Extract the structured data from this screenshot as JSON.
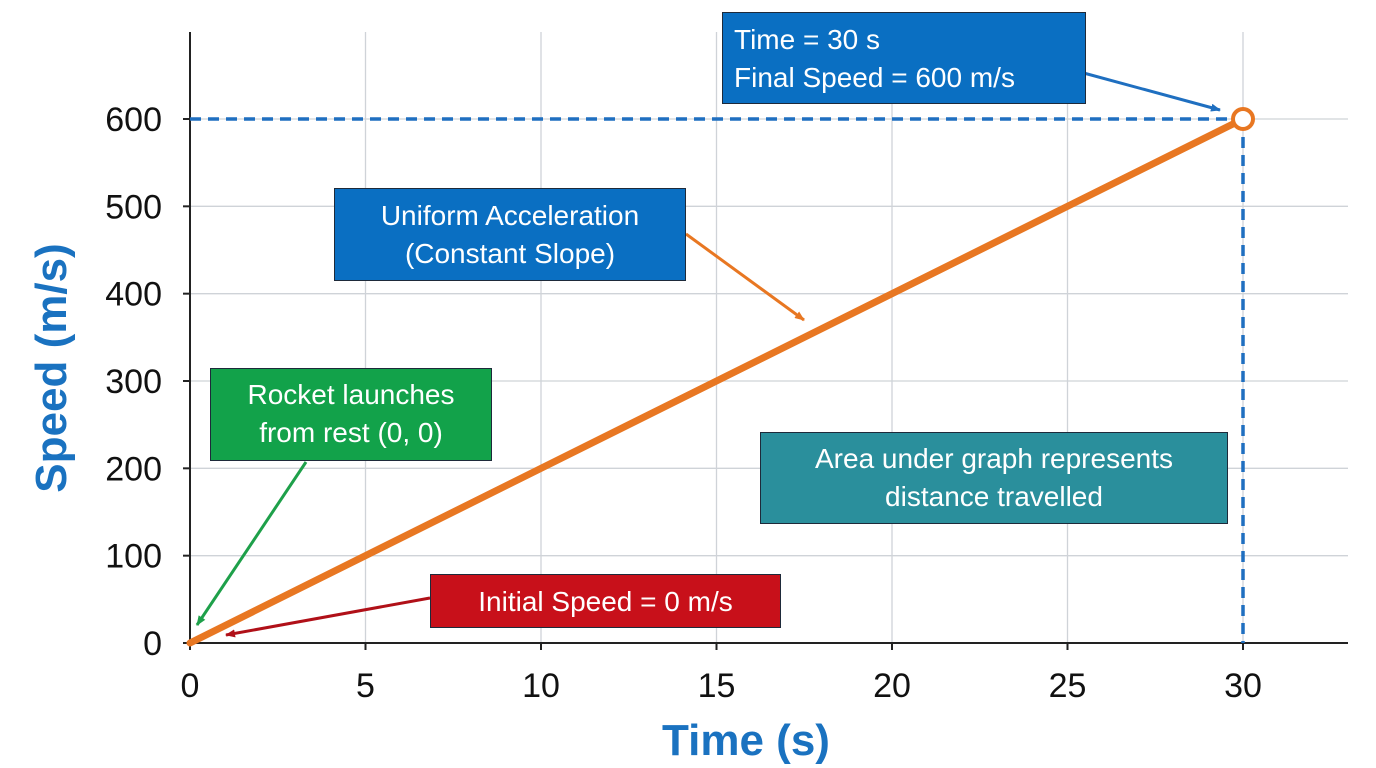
{
  "chart_data": {
    "type": "line",
    "xlabel": "Time (s)",
    "ylabel": "Speed (m/s)",
    "xlim": [
      0,
      33
    ],
    "ylim": [
      0,
      600
    ],
    "x_ticks": [
      "0",
      "5",
      "10",
      "15",
      "20",
      "25",
      "30"
    ],
    "y_ticks": [
      "0",
      "100",
      "200",
      "300",
      "400",
      "500",
      "600"
    ],
    "grid": true,
    "series": [
      {
        "x": [
          0,
          30
        ],
        "y": [
          0,
          600
        ],
        "color": "#e87722"
      }
    ],
    "highlight_point": {
      "x": 30,
      "y": 600
    },
    "reference_lines": {
      "x": 30,
      "y": 600,
      "color": "#1f6fc0",
      "style": "dashed"
    },
    "annotations": [
      {
        "id": "final",
        "lines": [
          "Time = 30 s",
          "Final Speed = 600 m/s"
        ],
        "bg": "#0a6fc2",
        "arrow_color": "#1f6fc0"
      },
      {
        "id": "uniform",
        "lines": [
          "Uniform Acceleration",
          "(Constant Slope)"
        ],
        "bg": "#0a6fc2",
        "arrow_color": "#e87722"
      },
      {
        "id": "launch",
        "lines": [
          "Rocket launches",
          "from rest (0, 0)"
        ],
        "bg": "#12a24a",
        "arrow_color": "#1ea04a"
      },
      {
        "id": "area",
        "lines": [
          "Area under graph represents",
          "distance travelled"
        ],
        "bg": "#2a8f9c",
        "arrow_color": null
      },
      {
        "id": "initial",
        "lines": [
          "Initial Speed = 0 m/s"
        ],
        "bg": "#c8101a",
        "arrow_color": "#b01018"
      }
    ]
  }
}
